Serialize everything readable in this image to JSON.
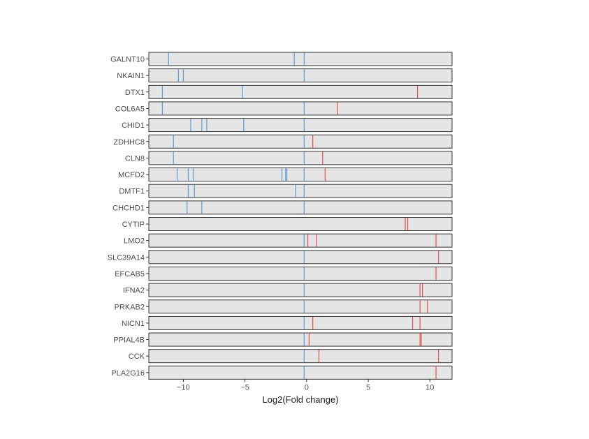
{
  "chart_data": {
    "type": "strip",
    "title": "",
    "xlabel": "Log2(Fold change)",
    "ylabel": "",
    "xlim": [
      -12.8,
      11.8
    ],
    "x_ticks": [
      -10,
      -5,
      0,
      5,
      10
    ],
    "x_tick_labels": [
      "−10",
      "−5",
      "0",
      "5",
      "10"
    ],
    "grid": false,
    "legend": "none",
    "colors": {
      "negative": "#6a9fd0",
      "positive": "#e05a5a",
      "panel_fill": "#e5e5e5",
      "panel_border": "#333333"
    },
    "categories": [
      "GALNT10",
      "NKAIN1",
      "DTX1",
      "COL6A5",
      "CHID1",
      "ZDHHC8",
      "CLN8",
      "MCFD2",
      "DMTF1",
      "CHCHD1",
      "CYTIP",
      "LMO2",
      "SLC39A14",
      "EFCAB5",
      "IFNA2",
      "PRKAB2",
      "NICN1",
      "PPIAL4B",
      "CCK",
      "PLA2G16"
    ],
    "rows": [
      {
        "gene": "GALNT10",
        "values": [
          -11.2,
          -1.0,
          -0.2
        ]
      },
      {
        "gene": "NKAIN1",
        "values": [
          -10.4,
          -10.0,
          -0.2
        ]
      },
      {
        "gene": "DTX1",
        "values": [
          -11.7,
          -5.2,
          9.0
        ]
      },
      {
        "gene": "COL6A5",
        "values": [
          -11.7,
          -0.2,
          2.5
        ]
      },
      {
        "gene": "CHID1",
        "values": [
          -9.4,
          -8.5,
          -8.1,
          -5.1,
          -0.2
        ]
      },
      {
        "gene": "ZDHHC8",
        "values": [
          -10.8,
          -0.2,
          0.5
        ]
      },
      {
        "gene": "CLN8",
        "values": [
          -10.8,
          -0.2,
          1.3
        ]
      },
      {
        "gene": "MCFD2",
        "values": [
          -10.5,
          -9.6,
          -9.2,
          -2.0,
          -1.7,
          -1.6,
          -0.2,
          1.5
        ]
      },
      {
        "gene": "DMTF1",
        "values": [
          -9.6,
          -9.1,
          -0.9,
          -0.2
        ]
      },
      {
        "gene": "CHCHD1",
        "values": [
          -9.7,
          -8.5,
          -0.2
        ]
      },
      {
        "gene": "CYTIP",
        "values": [
          8.0,
          8.2
        ]
      },
      {
        "gene": "LMO2",
        "values": [
          -0.2,
          0.1,
          0.8,
          10.5
        ]
      },
      {
        "gene": "SLC39A14",
        "values": [
          -0.2,
          10.7
        ]
      },
      {
        "gene": "EFCAB5",
        "values": [
          -0.2,
          10.5
        ]
      },
      {
        "gene": "IFNA2",
        "values": [
          -0.2,
          9.2,
          9.4
        ]
      },
      {
        "gene": "PRKAB2",
        "values": [
          -0.2,
          9.2,
          9.8
        ]
      },
      {
        "gene": "NICN1",
        "values": [
          -0.2,
          0.5,
          8.6,
          9.2
        ]
      },
      {
        "gene": "PPIAL4B",
        "values": [
          -0.2,
          0.2,
          9.2,
          9.3
        ]
      },
      {
        "gene": "CCK",
        "values": [
          -0.2,
          1.0,
          10.7
        ]
      },
      {
        "gene": "PLA2G16",
        "values": [
          -0.2,
          10.5
        ]
      }
    ]
  }
}
